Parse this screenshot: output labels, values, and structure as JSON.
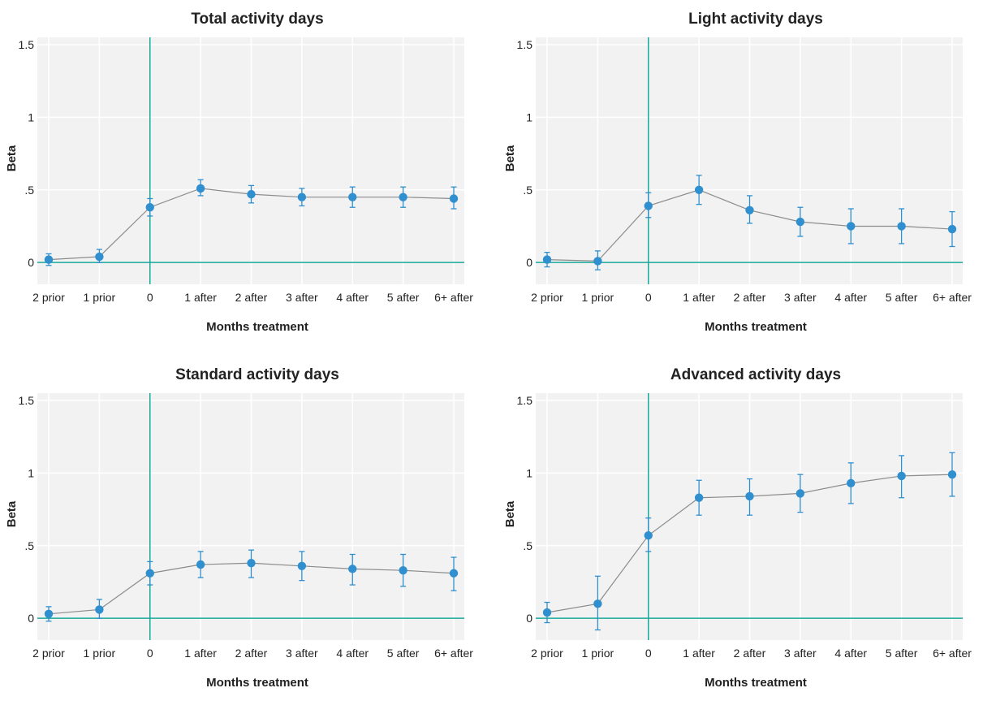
{
  "chart_data": [
    {
      "type": "line",
      "title": "Total activity days",
      "xlabel": "Months treatment",
      "ylabel": "Beta",
      "categories": [
        "2 prior",
        "1 prior",
        "0",
        "1 after",
        "2 after",
        "3 after",
        "4 after",
        "5 after",
        "6+ after"
      ],
      "yticks": [
        "0",
        ".5",
        "1",
        "1.5"
      ],
      "ylim": [
        -0.15,
        1.55
      ],
      "grid": true,
      "reference_lines": {
        "x_category": "0",
        "y": 0
      },
      "series": [
        {
          "values": [
            0.02,
            0.04,
            0.38,
            0.51,
            0.47,
            0.45,
            0.45,
            0.45,
            0.44
          ],
          "ci_low": [
            -0.02,
            0.0,
            0.32,
            0.46,
            0.41,
            0.39,
            0.38,
            0.38,
            0.37
          ],
          "ci_high": [
            0.06,
            0.09,
            0.44,
            0.57,
            0.53,
            0.51,
            0.52,
            0.52,
            0.52
          ]
        }
      ]
    },
    {
      "type": "line",
      "title": "Light activity days",
      "xlabel": "Months treatment",
      "ylabel": "Beta",
      "categories": [
        "2 prior",
        "1 prior",
        "0",
        "1 after",
        "2 after",
        "3 after",
        "4 after",
        "5 after",
        "6+ after"
      ],
      "yticks": [
        "0",
        ".5",
        "1",
        "1.5"
      ],
      "ylim": [
        -0.15,
        1.55
      ],
      "grid": true,
      "reference_lines": {
        "x_category": "0",
        "y": 0
      },
      "series": [
        {
          "values": [
            0.02,
            0.01,
            0.39,
            0.5,
            0.36,
            0.28,
            0.25,
            0.25,
            0.23
          ],
          "ci_low": [
            -0.03,
            -0.05,
            0.31,
            0.4,
            0.27,
            0.18,
            0.13,
            0.13,
            0.11
          ],
          "ci_high": [
            0.07,
            0.08,
            0.48,
            0.6,
            0.46,
            0.38,
            0.37,
            0.37,
            0.35
          ]
        }
      ]
    },
    {
      "type": "line",
      "title": "Standard activity days",
      "xlabel": "Months treatment",
      "ylabel": "Beta",
      "categories": [
        "2 prior",
        "1 prior",
        "0",
        "1 after",
        "2 after",
        "3 after",
        "4 after",
        "5 after",
        "6+ after"
      ],
      "yticks": [
        "0",
        ".5",
        "1",
        "1.5"
      ],
      "ylim": [
        -0.15,
        1.55
      ],
      "grid": true,
      "reference_lines": {
        "x_category": "0",
        "y": 0
      },
      "series": [
        {
          "values": [
            0.03,
            0.06,
            0.31,
            0.37,
            0.38,
            0.36,
            0.34,
            0.33,
            0.31
          ],
          "ci_low": [
            -0.02,
            0.0,
            0.23,
            0.28,
            0.28,
            0.26,
            0.23,
            0.22,
            0.19
          ],
          "ci_high": [
            0.08,
            0.13,
            0.39,
            0.46,
            0.47,
            0.46,
            0.44,
            0.44,
            0.42
          ]
        }
      ]
    },
    {
      "type": "line",
      "title": "Advanced activity days",
      "xlabel": "Months treatment",
      "ylabel": "Beta",
      "categories": [
        "2 prior",
        "1 prior",
        "0",
        "1 after",
        "2 after",
        "3 after",
        "4 after",
        "5 after",
        "6+ after"
      ],
      "yticks": [
        "0",
        ".5",
        "1",
        "1.5"
      ],
      "ylim": [
        -0.15,
        1.55
      ],
      "grid": true,
      "reference_lines": {
        "x_category": "0",
        "y": 0
      },
      "series": [
        {
          "values": [
            0.04,
            0.1,
            0.57,
            0.83,
            0.84,
            0.86,
            0.93,
            0.98,
            0.99
          ],
          "ci_low": [
            -0.03,
            -0.08,
            0.46,
            0.71,
            0.71,
            0.73,
            0.79,
            0.83,
            0.84
          ],
          "ci_high": [
            0.11,
            0.29,
            0.69,
            0.95,
            0.96,
            0.99,
            1.07,
            1.12,
            1.14
          ]
        }
      ]
    }
  ],
  "colors": {
    "marker": "#2f8fcf",
    "connector": "#8c8c8c",
    "reference": "#17a99a",
    "plot_bg": "#f2f2f2",
    "grid": "#ffffff"
  }
}
